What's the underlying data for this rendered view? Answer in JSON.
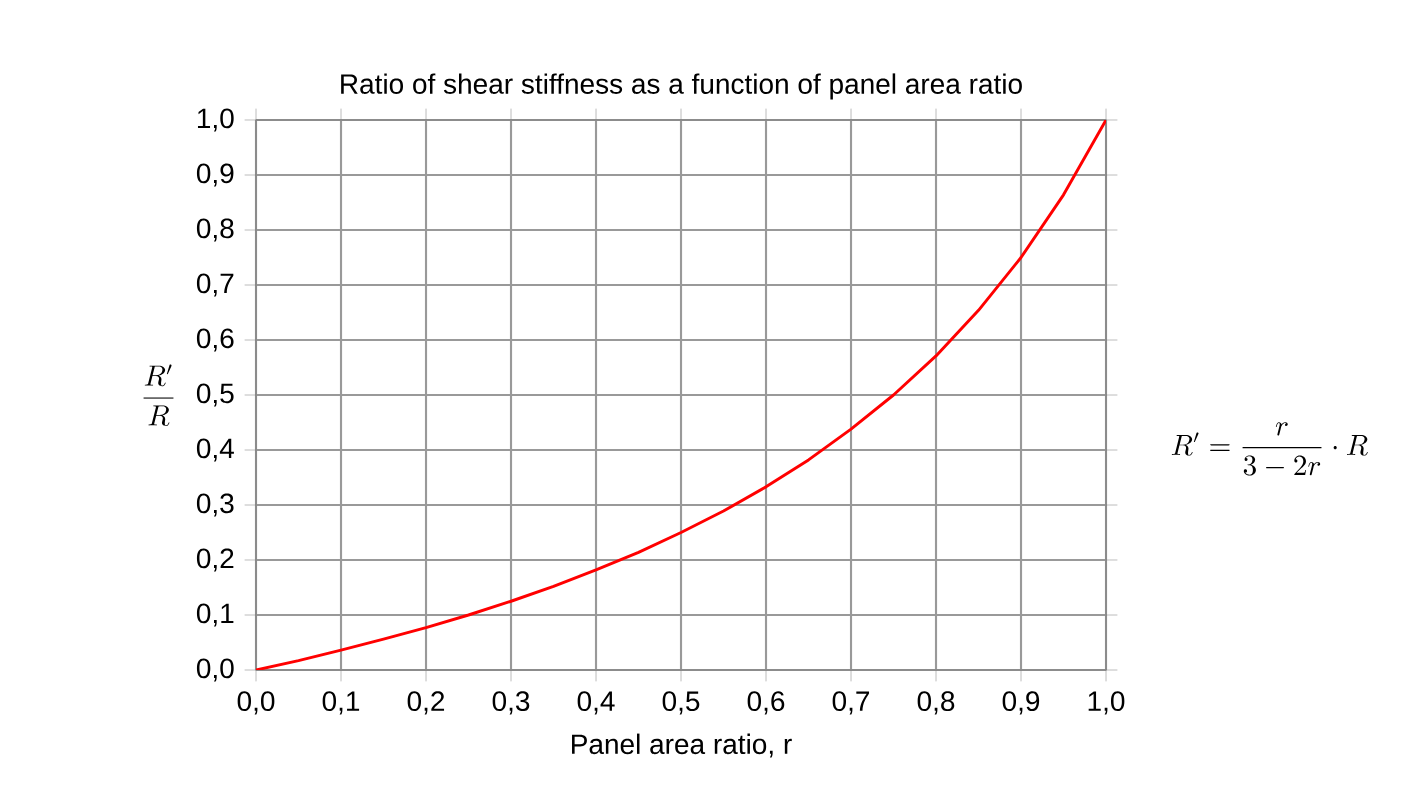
{
  "chart_data": {
    "type": "line",
    "title": "Ratio of shear stiffness as a function of panel area ratio",
    "xlabel": "Panel area ratio, r",
    "ylabel": "\\frac{R'}{R}",
    "x": [
      0,
      0.05,
      0.1,
      0.15,
      0.2,
      0.25,
      0.3,
      0.35,
      0.4,
      0.45,
      0.5,
      0.55,
      0.6,
      0.65,
      0.7,
      0.75,
      0.8,
      0.85,
      0.9,
      0.95,
      1.0
    ],
    "series": [
      {
        "color": "#ff0000",
        "values": [
          0,
          0.017,
          0.036,
          0.056,
          0.077,
          0.1,
          0.125,
          0.152,
          0.182,
          0.214,
          0.25,
          0.289,
          0.333,
          0.382,
          0.438,
          0.5,
          0.571,
          0.654,
          0.75,
          0.864,
          1.0
        ]
      }
    ],
    "xlim": [
      0,
      1
    ],
    "ylim": [
      0,
      1
    ],
    "xticks": [
      {
        "value": 0,
        "label": "0,0"
      },
      {
        "value": 0.1,
        "label": "0,1"
      },
      {
        "value": 0.2,
        "label": "0,2"
      },
      {
        "value": 0.3,
        "label": "0,3"
      },
      {
        "value": 0.4,
        "label": "0,4"
      },
      {
        "value": 0.5,
        "label": "0,5"
      },
      {
        "value": 0.6,
        "label": "0,6"
      },
      {
        "value": 0.7,
        "label": "0,7"
      },
      {
        "value": 0.8,
        "label": "0,8"
      },
      {
        "value": 0.9,
        "label": "0,9"
      },
      {
        "value": 1.0,
        "label": "1,0"
      }
    ],
    "yticks": [
      {
        "value": 0,
        "label": "0,0"
      },
      {
        "value": 0.1,
        "label": "0,1"
      },
      {
        "value": 0.2,
        "label": "0,2"
      },
      {
        "value": 0.3,
        "label": "0,3"
      },
      {
        "value": 0.4,
        "label": "0,4"
      },
      {
        "value": 0.5,
        "label": "0,5"
      },
      {
        "value": 0.6,
        "label": "0,6"
      },
      {
        "value": 0.7,
        "label": "0,7"
      },
      {
        "value": 0.8,
        "label": "0,8"
      },
      {
        "value": 0.9,
        "label": "0,9"
      },
      {
        "value": 1.0,
        "label": "1,0"
      }
    ],
    "grid": true,
    "annotations": [
      "R' = \\frac{r}{3-2r}\\cdot R"
    ]
  }
}
